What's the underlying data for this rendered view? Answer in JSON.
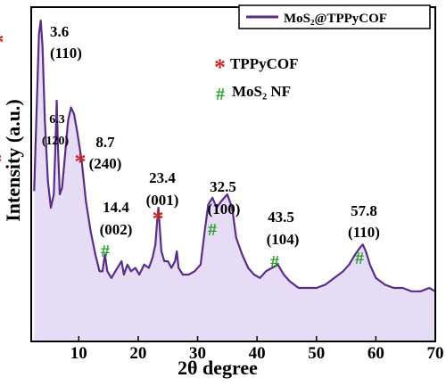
{
  "chart_data": {
    "type": "line",
    "xlabel": "2θ degree",
    "ylabel": "Intensity (a.u.)",
    "xlim": [
      2,
      70
    ],
    "ylim": [
      0,
      100
    ],
    "x_ticks": [
      10,
      20,
      30,
      40,
      50,
      60,
      70
    ],
    "grid": false,
    "fill_under_curve": true,
    "colors": {
      "line": "#5a2d86",
      "fill": "#e6dcf5",
      "star": "#c62828",
      "hash": "#2e9e2e"
    },
    "series": [
      {
        "name": "MoS₂@TPPyCOF",
        "x": [
          2.5,
          3.0,
          3.3,
          3.6,
          3.9,
          4.3,
          4.8,
          5.3,
          5.8,
          6.1,
          6.3,
          6.5,
          6.8,
          7.2,
          7.7,
          8.2,
          8.7,
          9.2,
          9.8,
          10.5,
          11.2,
          12.0,
          12.8,
          13.5,
          14.0,
          14.4,
          14.8,
          15.5,
          16.5,
          17.2,
          17.6,
          18.2,
          18.8,
          19.5,
          20.2,
          21.0,
          21.8,
          22.4,
          22.9,
          23.2,
          23.4,
          23.6,
          23.9,
          24.4,
          25.0,
          25.6,
          26.2,
          26.5,
          26.8,
          27.5,
          28.5,
          29.5,
          30.5,
          31.2,
          31.8,
          32.5,
          33.2,
          34.0,
          35.0,
          35.8,
          36.5,
          37.5,
          38.5,
          39.5,
          40.5,
          41.5,
          42.5,
          43.5,
          44.5,
          45.5,
          47.0,
          48.5,
          50.0,
          51.5,
          53.0,
          54.5,
          55.5,
          56.5,
          57.3,
          57.8,
          58.3,
          59.0,
          60.0,
          61.5,
          63.0,
          64.5,
          66.0,
          67.5,
          69.0,
          70.0
        ],
        "y": [
          45,
          75,
          92,
          96,
          88,
          66,
          48,
          40,
          44,
          60,
          72,
          58,
          44,
          46,
          56,
          66,
          70,
          68,
          62,
          54,
          42,
          33,
          26,
          21,
          21,
          26,
          21,
          19,
          22,
          24,
          20,
          23,
          21,
          22,
          20,
          23,
          22,
          25,
          29,
          36,
          40,
          35,
          27,
          24,
          24,
          22,
          24,
          27,
          22,
          20,
          20,
          21,
          23,
          33,
          41,
          43,
          40,
          42,
          44,
          40,
          31,
          26,
          22,
          20,
          19,
          21,
          22,
          23,
          20,
          18,
          16,
          16,
          16,
          17,
          19,
          21,
          23,
          26,
          28,
          29,
          27,
          23,
          19,
          17,
          16,
          16,
          15,
          15,
          16,
          15
        ]
      }
    ],
    "legend": {
      "placement": "top-right",
      "label": "MoS₂@TPPyCOF"
    },
    "marker_legend": [
      {
        "symbol": "*",
        "label": "TPPyCOF"
      },
      {
        "symbol": "#",
        "label": "MoS₂ NF"
      }
    ],
    "peaks": [
      {
        "x": 3.6,
        "y": 96,
        "marker": "*",
        "position": "3.6",
        "index": "(110)",
        "size": "large"
      },
      {
        "x": 6.3,
        "y": 72,
        "marker": "*",
        "position": "6.3",
        "index": "(120)",
        "size": "small"
      },
      {
        "x": 8.7,
        "y": 70,
        "marker": "*",
        "position": "8.7",
        "index": "(240)",
        "size": "large"
      },
      {
        "x": 14.4,
        "y": 26,
        "marker": "#",
        "position": "14.4",
        "index": "(002)",
        "size": "large"
      },
      {
        "x": 23.4,
        "y": 40,
        "marker": "*",
        "position": "23.4",
        "index": "(001)",
        "size": "large"
      },
      {
        "x": 32.5,
        "y": 43,
        "marker": "#",
        "position": "32.5",
        "index": "(100)",
        "size": "large"
      },
      {
        "x": 43.5,
        "y": 23,
        "marker": "#",
        "position": "43.5",
        "index": "(104)",
        "size": "large"
      },
      {
        "x": 57.8,
        "y": 29,
        "marker": "#",
        "position": "57.8",
        "index": "(110)",
        "size": "large"
      }
    ]
  }
}
